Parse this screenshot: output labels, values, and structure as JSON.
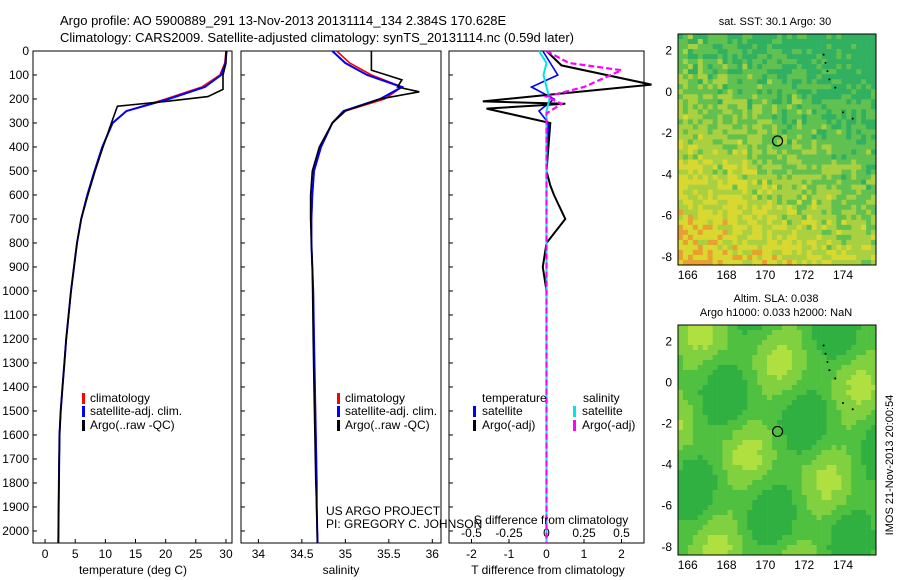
{
  "header": {
    "line1": "Argo profile: AO 5900889_291 13-Nov-2013 20131114_134 2.384S 170.628E",
    "line2": "Climatology: CARS2009. Satellite-adjusted climatology: synTS_20131114.nc (0.59d later)"
  },
  "colors": {
    "clim": "#ff0000",
    "sat": "#0000ff",
    "argo": "#000000",
    "sal_sat": "#00e5e5",
    "sal_argo": "#ff00ff"
  },
  "depth_axis": {
    "ticks": [
      0,
      100,
      200,
      300,
      400,
      500,
      600,
      700,
      800,
      900,
      1000,
      1100,
      1200,
      1300,
      1400,
      1500,
      1600,
      1700,
      1800,
      1900,
      2000
    ]
  },
  "panel_temp": {
    "xlabel": "temperature (deg C)",
    "xticks": [
      "0",
      "5",
      "10",
      "15",
      "20",
      "25",
      "30"
    ],
    "legend": [
      "climatology",
      "satellite-adj. clim.",
      "Argo(..raw -QC)"
    ]
  },
  "panel_sal": {
    "xlabel": "salinity",
    "xticks": [
      "34",
      "34.5",
      "35",
      "35.5",
      "36"
    ],
    "legend": [
      "climatology",
      "satellite-adj. clim.",
      "Argo(..raw -QC)"
    ],
    "credit1": "US ARGO PROJECT",
    "credit2": "PI: GREGORY C. JOHNSON"
  },
  "panel_diff": {
    "xlabel": "T difference from climatology",
    "xticks": [
      "-2",
      "-1",
      "0",
      "1",
      "2"
    ],
    "s_label": "S difference from climatology",
    "s_ticks": [
      "-0.5",
      "-0.25",
      "0",
      "0.25",
      "0.5"
    ],
    "legend_t_title": "temperature",
    "legend_s_title": "salinity",
    "legend_t": [
      "satellite",
      "Argo(-adj)"
    ],
    "legend_s": [
      "satellite",
      "Argo(-adj)"
    ]
  },
  "map_sst": {
    "title": "sat. SST: 30.1 Argo: 30",
    "xticks": [
      "166",
      "168",
      "170",
      "172",
      "174"
    ],
    "yticks": [
      "2",
      "0",
      "-2",
      "-4",
      "-6",
      "-8"
    ]
  },
  "map_sla": {
    "title1": "Altim. SLA: 0.038",
    "title2": "Argo h1000: 0.033 h2000: NaN",
    "xticks": [
      "166",
      "168",
      "170",
      "172",
      "174"
    ],
    "yticks": [
      "2",
      "0",
      "-2",
      "-4",
      "-6",
      "-8"
    ]
  },
  "side_stamp": "IMOS 21-Nov-2013 20:00:54",
  "chart_data": [
    {
      "type": "line",
      "xlabel": "temperature (deg C)",
      "xlim": [
        -2,
        31
      ],
      "ylim": [
        2050,
        0
      ],
      "series": [
        {
          "name": "climatology",
          "x": [
            30.0,
            29.8,
            29.0,
            26.0,
            20.0,
            13.5,
            11.2,
            9.5,
            8.2,
            7.0,
            6.0,
            5.3,
            4.8,
            4.3,
            3.9,
            3.5,
            3.2,
            2.9,
            2.6,
            2.4,
            2.3,
            2.2
          ],
          "y": [
            0,
            50,
            100,
            150,
            200,
            250,
            300,
            400,
            500,
            600,
            700,
            800,
            900,
            1000,
            1100,
            1200,
            1300,
            1400,
            1500,
            1600,
            1800,
            2050
          ]
        },
        {
          "name": "satellite-adj. clim.",
          "x": [
            30.1,
            29.9,
            29.2,
            26.5,
            20.5,
            13.5,
            11.2,
            9.5,
            8.2,
            7.0,
            6.0,
            5.3,
            4.8,
            4.3,
            3.9,
            3.5,
            3.2,
            2.9,
            2.6,
            2.4,
            2.3,
            2.2
          ],
          "y": [
            0,
            50,
            100,
            150,
            200,
            250,
            300,
            400,
            500,
            600,
            700,
            800,
            900,
            1000,
            1100,
            1200,
            1300,
            1400,
            1500,
            1600,
            1800,
            2050
          ]
        },
        {
          "name": "Argo(..raw -QC)",
          "x": [
            30.0,
            30.0,
            29.5,
            29.5,
            27.0,
            20.0,
            12.0,
            11.0,
            9.6,
            8.3,
            7.1,
            6.0,
            5.3,
            4.8,
            4.3,
            3.9,
            3.5,
            3.2,
            2.9,
            2.6,
            2.4,
            2.3,
            2.2
          ],
          "y": [
            0,
            50,
            100,
            160,
            190,
            210,
            230,
            300,
            400,
            500,
            600,
            700,
            800,
            900,
            1000,
            1100,
            1200,
            1300,
            1400,
            1500,
            1600,
            1800,
            2050
          ]
        }
      ]
    },
    {
      "type": "line",
      "xlabel": "salinity",
      "xlim": [
        33.8,
        36.1
      ],
      "ylim": [
        2050,
        0
      ],
      "series": [
        {
          "name": "climatology",
          "x": [
            34.9,
            35.05,
            35.3,
            35.65,
            35.45,
            35.0,
            34.85,
            34.72,
            34.64,
            34.62,
            34.61,
            34.61,
            34.62,
            34.63,
            34.64,
            34.65,
            34.66,
            34.67,
            34.67,
            34.68
          ],
          "y": [
            0,
            50,
            100,
            150,
            200,
            250,
            300,
            400,
            500,
            600,
            700,
            800,
            900,
            1000,
            1200,
            1400,
            1600,
            1800,
            1900,
            2050
          ]
        },
        {
          "name": "satellite-adj. clim.",
          "x": [
            34.85,
            35.0,
            35.25,
            35.65,
            35.4,
            34.98,
            34.85,
            34.72,
            34.64,
            34.62,
            34.61,
            34.61,
            34.62,
            34.63,
            34.64,
            34.65,
            34.66,
            34.67,
            34.67,
            34.68
          ],
          "y": [
            0,
            50,
            100,
            150,
            200,
            250,
            300,
            400,
            500,
            600,
            700,
            800,
            900,
            1000,
            1200,
            1400,
            1600,
            1800,
            1900,
            2050
          ]
        },
        {
          "name": "Argo(..raw -QC)",
          "x": [
            35.3,
            35.3,
            35.65,
            35.6,
            35.85,
            35.4,
            35.0,
            34.85,
            34.7,
            34.62,
            34.6,
            34.6,
            34.61,
            34.62,
            34.63,
            34.64,
            34.65,
            34.66,
            34.67,
            34.68
          ],
          "y": [
            0,
            80,
            120,
            150,
            170,
            200,
            250,
            300,
            400,
            500,
            600,
            700,
            800,
            900,
            1200,
            1400,
            1600,
            1800,
            1900,
            2050
          ]
        }
      ]
    },
    {
      "type": "line",
      "xlabel": "T difference from climatology",
      "xlim": [
        -2.6,
        2.6
      ],
      "ylim": [
        2050,
        0
      ],
      "series": [
        {
          "name": "satellite",
          "x": [
            -0.1,
            0.1,
            0.3,
            -0.4,
            0.2,
            -0.2,
            0.05,
            0.0,
            0.0,
            0.0,
            0.0
          ],
          "y": [
            0,
            50,
            100,
            150,
            200,
            250,
            300,
            500,
            1000,
            1500,
            2050
          ]
        },
        {
          "name": "Argo(-adj)",
          "x": [
            0.0,
            0.4,
            2.8,
            0.2,
            -1.7,
            0.5,
            -1.6,
            0.1,
            0.0,
            0.1,
            0.2,
            0.5,
            0.0,
            -0.1,
            0.0,
            0.0,
            0.0
          ],
          "y": [
            0,
            60,
            140,
            180,
            210,
            220,
            240,
            300,
            500,
            560,
            600,
            700,
            800,
            900,
            1000,
            1500,
            2050
          ]
        }
      ]
    },
    {
      "type": "line",
      "xlabel": "S difference from climatology",
      "xlim": [
        -0.65,
        0.65
      ],
      "ylim": [
        2050,
        0
      ],
      "series": [
        {
          "name": "satellite",
          "x": [
            -0.05,
            0.0,
            -0.02,
            0.0,
            0.02,
            0.0,
            0.0,
            0.0
          ],
          "y": [
            0,
            50,
            100,
            150,
            200,
            250,
            500,
            2050
          ]
        },
        {
          "name": "Argo(-adj)",
          "x": [
            0.0,
            0.15,
            0.5,
            0.25,
            0.0,
            0.1,
            0.0,
            0.0,
            0.0
          ],
          "y": [
            0,
            50,
            80,
            150,
            190,
            220,
            260,
            500,
            2050
          ]
        }
      ]
    },
    {
      "type": "heatmap",
      "title": "sat. SST: 30.1 Argo: 30",
      "xlim": [
        165.5,
        175.7
      ],
      "ylim": [
        -8.4,
        2.8
      ],
      "profile_marker": {
        "lon": 170.628,
        "lat": -2.384
      }
    },
    {
      "type": "heatmap",
      "title": "Altim. SLA: 0.038",
      "xlim": [
        165.5,
        175.7
      ],
      "ylim": [
        -8.4,
        2.8
      ],
      "profile_marker": {
        "lon": 170.628,
        "lat": -2.384
      }
    }
  ]
}
